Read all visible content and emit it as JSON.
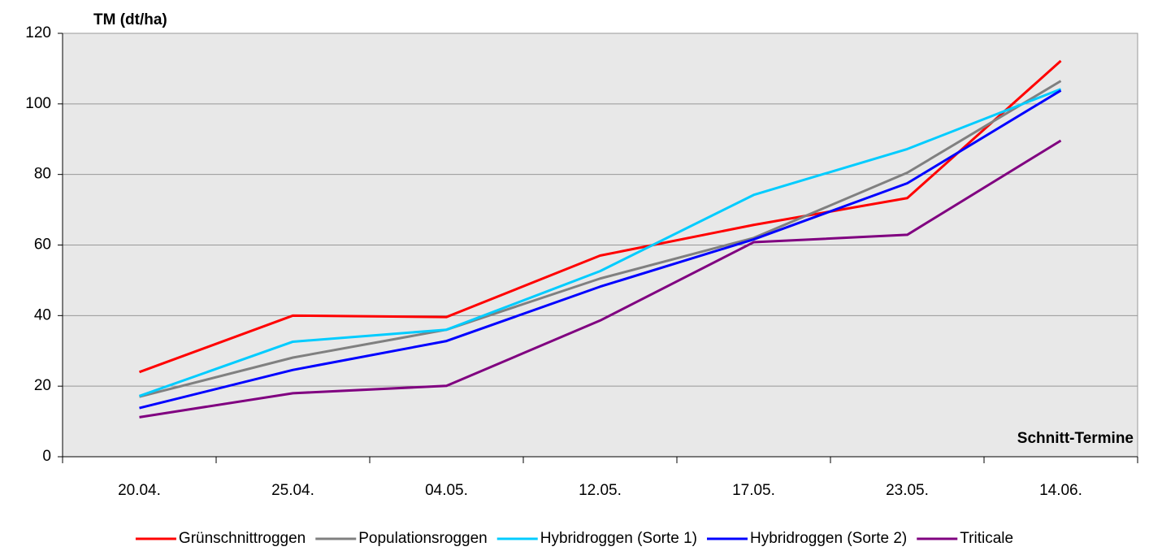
{
  "chart_data": {
    "type": "line",
    "y_title": "TM (dt/ha)",
    "x_title": "Schnitt-Termine",
    "categories": [
      "20.04.",
      "25.04.",
      "04.05.",
      "12.05.",
      "17.05.",
      "23.05.",
      "14.06."
    ],
    "series": [
      {
        "name": "Grünschnittroggen",
        "color": "#ff0000",
        "values": [
          24.0,
          40.0,
          39.6,
          57.0,
          65.7,
          73.3,
          112.2
        ]
      },
      {
        "name": "Populationsroggen",
        "color": "#808080",
        "values": [
          17.0,
          28.1,
          36.0,
          50.5,
          62.0,
          80.5,
          106.5
        ]
      },
      {
        "name": "Hybridroggen (Sorte 1)",
        "color": "#00ccff",
        "values": [
          17.2,
          32.6,
          36.0,
          52.6,
          74.2,
          87.2,
          104.2
        ]
      },
      {
        "name": "Hybridroggen (Sorte 2)",
        "color": "#0000ff",
        "values": [
          13.8,
          24.6,
          32.8,
          48.2,
          61.6,
          77.5,
          103.8
        ]
      },
      {
        "name": "Triticale",
        "color": "#800080",
        "values": [
          11.2,
          18.0,
          20.1,
          38.6,
          60.8,
          62.9,
          89.6
        ]
      }
    ],
    "ylim": [
      0,
      120
    ],
    "yticks": [
      0,
      20,
      40,
      60,
      80,
      100,
      120
    ],
    "grid": true,
    "legend": "bottom"
  }
}
